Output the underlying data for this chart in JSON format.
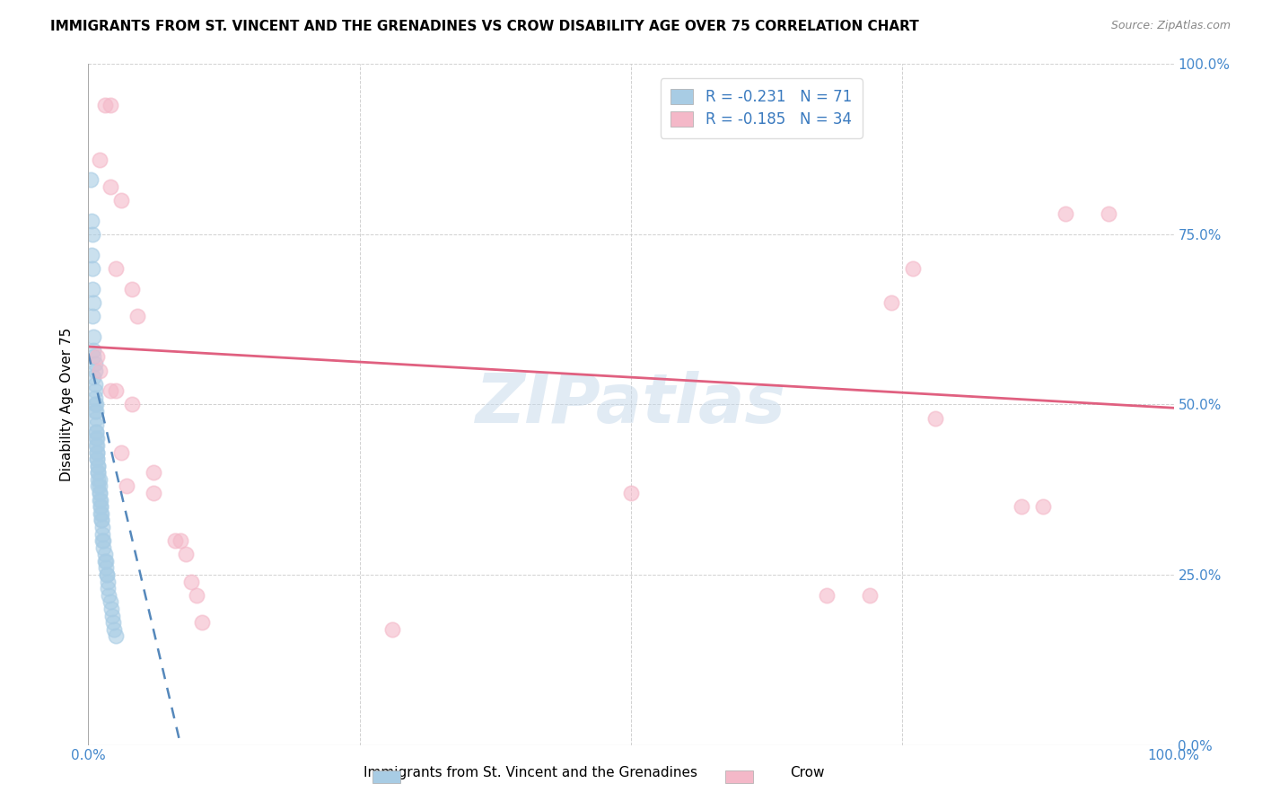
{
  "title": "IMMIGRANTS FROM ST. VINCENT AND THE GRENADINES VS CROW DISABILITY AGE OVER 75 CORRELATION CHART",
  "source": "Source: ZipAtlas.com",
  "ylabel": "Disability Age Over 75",
  "xlim": [
    0,
    1.0
  ],
  "ylim": [
    0,
    1.0
  ],
  "xtick_labels": [
    "0.0%",
    "100.0%"
  ],
  "ytick_labels": [
    "0.0%",
    "25.0%",
    "50.0%",
    "75.0%",
    "100.0%"
  ],
  "ytick_positions": [
    0.0,
    0.25,
    0.5,
    0.75,
    1.0
  ],
  "legend_r1": "-0.231",
  "legend_n1": "71",
  "legend_r2": "-0.185",
  "legend_n2": "34",
  "color_blue": "#a8cce4",
  "color_pink": "#f4b8c8",
  "color_blue_line": "#5588bb",
  "color_pink_line": "#e06080",
  "watermark": "ZIPatlas",
  "blue_points": [
    [
      0.002,
      0.83
    ],
    [
      0.003,
      0.77
    ],
    [
      0.004,
      0.75
    ],
    [
      0.003,
      0.72
    ],
    [
      0.004,
      0.7
    ],
    [
      0.004,
      0.67
    ],
    [
      0.005,
      0.65
    ],
    [
      0.004,
      0.63
    ],
    [
      0.005,
      0.6
    ],
    [
      0.005,
      0.58
    ],
    [
      0.005,
      0.57
    ],
    [
      0.006,
      0.56
    ],
    [
      0.006,
      0.55
    ],
    [
      0.005,
      0.54
    ],
    [
      0.006,
      0.53
    ],
    [
      0.006,
      0.52
    ],
    [
      0.006,
      0.51
    ],
    [
      0.006,
      0.5
    ],
    [
      0.007,
      0.5
    ],
    [
      0.006,
      0.49
    ],
    [
      0.007,
      0.49
    ],
    [
      0.007,
      0.48
    ],
    [
      0.007,
      0.47
    ],
    [
      0.007,
      0.46
    ],
    [
      0.007,
      0.46
    ],
    [
      0.007,
      0.45
    ],
    [
      0.008,
      0.45
    ],
    [
      0.007,
      0.44
    ],
    [
      0.008,
      0.44
    ],
    [
      0.008,
      0.43
    ],
    [
      0.008,
      0.43
    ],
    [
      0.008,
      0.42
    ],
    [
      0.008,
      0.42
    ],
    [
      0.009,
      0.41
    ],
    [
      0.009,
      0.41
    ],
    [
      0.009,
      0.4
    ],
    [
      0.009,
      0.4
    ],
    [
      0.009,
      0.39
    ],
    [
      0.01,
      0.39
    ],
    [
      0.009,
      0.38
    ],
    [
      0.01,
      0.38
    ],
    [
      0.01,
      0.37
    ],
    [
      0.01,
      0.37
    ],
    [
      0.01,
      0.36
    ],
    [
      0.011,
      0.36
    ],
    [
      0.011,
      0.35
    ],
    [
      0.011,
      0.35
    ],
    [
      0.011,
      0.34
    ],
    [
      0.012,
      0.34
    ],
    [
      0.012,
      0.33
    ],
    [
      0.012,
      0.33
    ],
    [
      0.013,
      0.32
    ],
    [
      0.013,
      0.31
    ],
    [
      0.013,
      0.3
    ],
    [
      0.014,
      0.3
    ],
    [
      0.014,
      0.29
    ],
    [
      0.015,
      0.28
    ],
    [
      0.015,
      0.27
    ],
    [
      0.016,
      0.27
    ],
    [
      0.016,
      0.26
    ],
    [
      0.017,
      0.25
    ],
    [
      0.017,
      0.25
    ],
    [
      0.018,
      0.24
    ],
    [
      0.018,
      0.23
    ],
    [
      0.019,
      0.22
    ],
    [
      0.02,
      0.21
    ],
    [
      0.021,
      0.2
    ],
    [
      0.022,
      0.19
    ],
    [
      0.023,
      0.18
    ],
    [
      0.024,
      0.17
    ],
    [
      0.025,
      0.16
    ]
  ],
  "pink_points": [
    [
      0.015,
      0.94
    ],
    [
      0.02,
      0.94
    ],
    [
      0.01,
      0.86
    ],
    [
      0.02,
      0.82
    ],
    [
      0.03,
      0.8
    ],
    [
      0.025,
      0.7
    ],
    [
      0.04,
      0.67
    ],
    [
      0.045,
      0.63
    ],
    [
      0.008,
      0.57
    ],
    [
      0.01,
      0.55
    ],
    [
      0.02,
      0.52
    ],
    [
      0.025,
      0.52
    ],
    [
      0.04,
      0.5
    ],
    [
      0.03,
      0.43
    ],
    [
      0.06,
      0.4
    ],
    [
      0.035,
      0.38
    ],
    [
      0.06,
      0.37
    ],
    [
      0.5,
      0.37
    ],
    [
      0.68,
      0.22
    ],
    [
      0.72,
      0.22
    ],
    [
      0.74,
      0.65
    ],
    [
      0.78,
      0.48
    ],
    [
      0.86,
      0.35
    ],
    [
      0.88,
      0.35
    ],
    [
      0.9,
      0.78
    ],
    [
      0.94,
      0.78
    ],
    [
      0.08,
      0.3
    ],
    [
      0.085,
      0.3
    ],
    [
      0.09,
      0.28
    ],
    [
      0.095,
      0.24
    ],
    [
      0.1,
      0.22
    ],
    [
      0.105,
      0.18
    ],
    [
      0.28,
      0.17
    ],
    [
      0.76,
      0.7
    ]
  ],
  "blue_trend_x": [
    0.0,
    0.085
  ],
  "blue_trend_y": [
    0.575,
    0.0
  ],
  "pink_trend_x": [
    0.0,
    1.0
  ],
  "pink_trend_y": [
    0.585,
    0.495
  ]
}
